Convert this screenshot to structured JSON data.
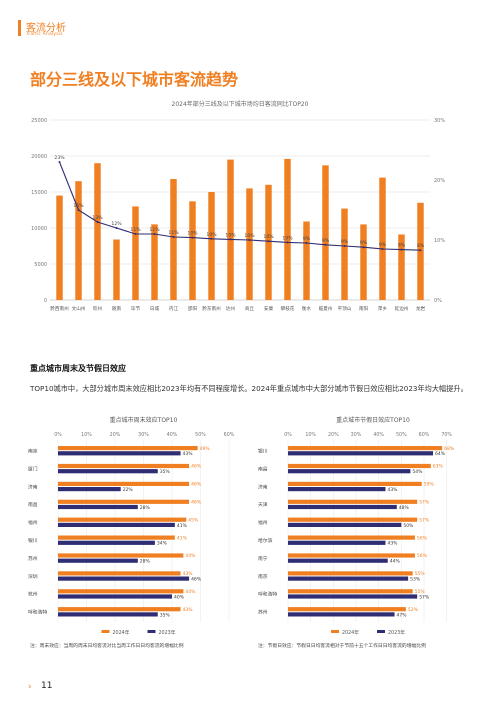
{
  "header": {
    "section": "客流分析",
    "section_en": "Traffic Analysis"
  },
  "main_title": "部分三线及以下城市客流趋势",
  "colors": {
    "orange": "#f07f22",
    "navy": "#2f2e74",
    "axis": "#999999",
    "grid": "#dddddd"
  },
  "chart_data": [
    {
      "type": "bar",
      "title": "2024年部分三线及以下城市场均日客流同比TOP20",
      "categories": [
        "黔西南州",
        "文山州",
        "钦州",
        "随南",
        "毕节",
        "白城",
        "内江",
        "邵阳",
        "黔东南州",
        "达州",
        "商丘",
        "安康",
        "攀枝花",
        "衡水",
        "临夏州",
        "平顶山",
        "南阳",
        "萍乡",
        "延边州",
        "龙岩"
      ],
      "series": [
        {
          "kind": "bar",
          "axis": "left",
          "values": [
            14500,
            16500,
            19000,
            8400,
            13000,
            10500,
            16800,
            13700,
            15000,
            19500,
            15500,
            16000,
            19600,
            10900,
            18700,
            12700,
            10500,
            17000,
            9100,
            13500
          ]
        },
        {
          "kind": "line",
          "axis": "right",
          "values": [
            23,
            15,
            13,
            12,
            11,
            11,
            10.5,
            10.4,
            10.2,
            10.1,
            10,
            9.8,
            9.6,
            9.5,
            9.2,
            9,
            8.8,
            8.5,
            8.4,
            8.3
          ],
          "labels": [
            "23%",
            "15%",
            "13%",
            "12%",
            "11%",
            "11%",
            "11%",
            "10%",
            "10%",
            "10%",
            "10%",
            "10%",
            "10%",
            "9%",
            "9%",
            "9%",
            "9%",
            "9%",
            "8%",
            "8%"
          ]
        }
      ],
      "y_left": {
        "min": 0,
        "max": 25000,
        "ticks": [
          "0",
          "5000",
          "10000",
          "15000",
          "20000",
          "25000"
        ]
      },
      "y_right": {
        "min": 0,
        "max": 30,
        "ticks": [
          "0%",
          "10%",
          "20%",
          "30%"
        ]
      }
    },
    {
      "type": "bar",
      "orientation": "horizontal",
      "title": "重点城市周末效应TOP10",
      "categories": [
        "南京",
        "厦门",
        "济南",
        "南昌",
        "福州",
        "银川",
        "苏州",
        "深圳",
        "杭州",
        "呼和浩特"
      ],
      "series": [
        {
          "name": "2024年",
          "values": [
            49,
            46,
            46,
            46,
            45,
            41,
            44,
            43,
            44,
            43
          ],
          "labels": [
            "49%",
            "46%",
            "46%",
            "46%",
            "45%",
            "41%",
            "44%",
            "43%",
            "44%",
            "43%"
          ]
        },
        {
          "name": "2023年",
          "values": [
            43,
            35,
            22,
            28,
            41,
            34,
            28,
            46,
            40,
            35
          ],
          "labels": [
            "43%",
            "35%",
            "22%",
            "28%",
            "41%",
            "34%",
            "28%",
            "46%",
            "40%",
            "35%"
          ]
        }
      ],
      "x_ticks": [
        "0%",
        "10%",
        "20%",
        "30%",
        "40%",
        "50%",
        "60%"
      ],
      "xlim": [
        0,
        60
      ],
      "legend": "bottom",
      "note": "注：周末效应：当周的周末日均客流对比当周工作日日均客流的增幅比例"
    },
    {
      "type": "bar",
      "orientation": "horizontal",
      "title": "重点城市节假日效应TOP10",
      "categories": [
        "银川",
        "南昌",
        "济南",
        "天津",
        "福州",
        "哈尔滨",
        "南宁",
        "南京",
        "呼和浩特",
        "苏州"
      ],
      "series": [
        {
          "name": "2024年",
          "values": [
            68,
            63,
            59,
            57,
            57,
            56,
            56,
            55,
            55,
            52
          ],
          "labels": [
            "68%",
            "63%",
            "59%",
            "57%",
            "57%",
            "56%",
            "56%",
            "55%",
            "55%",
            "52%"
          ]
        },
        {
          "name": "2023年",
          "values": [
            64,
            54,
            43,
            48,
            50,
            43,
            44,
            53,
            57,
            47
          ],
          "labels": [
            "64%",
            "54%",
            "43%",
            "48%",
            "50%",
            "43%",
            "44%",
            "53%",
            "57%",
            "47%"
          ]
        }
      ],
      "x_ticks": [
        "0%",
        "10%",
        "20%",
        "30%",
        "40%",
        "50%",
        "60%",
        "70%"
      ],
      "xlim": [
        0,
        75
      ],
      "legend": "bottom",
      "note": "注：节假日效应：节假日日均客流相对于节前十五个工作日日均客流的增幅比例"
    }
  ],
  "section": {
    "title": "重点城市周末及节假日效应",
    "desc": "TOP10城市中，大部分城市周末效应相比2023年均有不同程度增长。2024年重点城市中大部分城市节假日效应相比2023年均大幅提升。"
  },
  "page_number": "11"
}
